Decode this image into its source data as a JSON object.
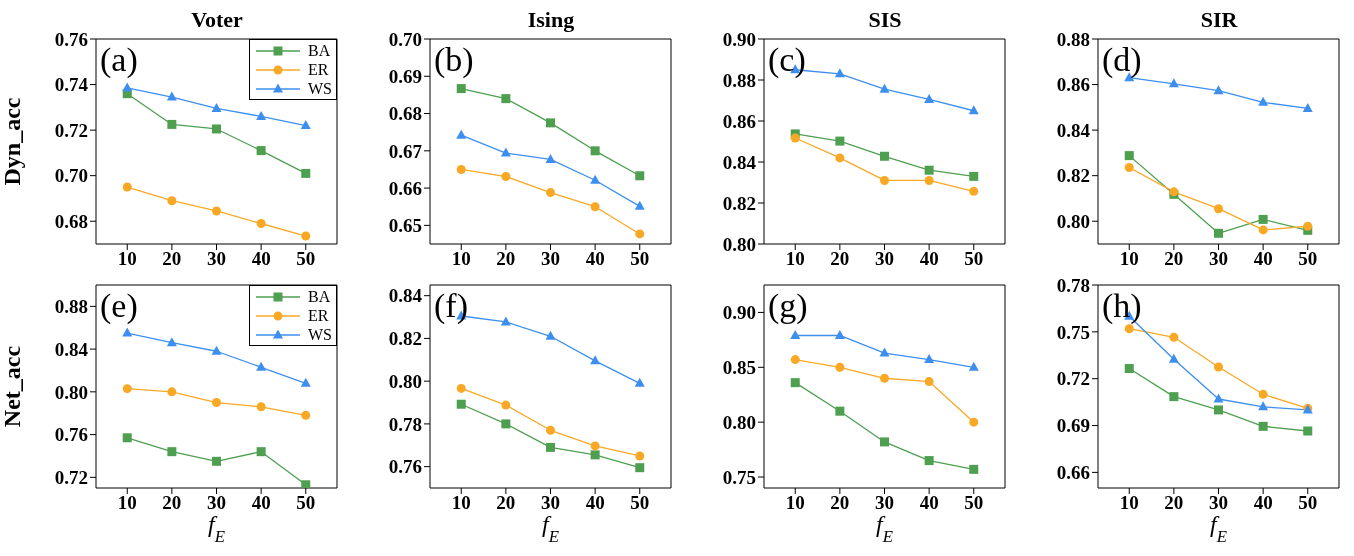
{
  "chart_data": [
    {
      "type": "line",
      "title": "Voter",
      "ylabel": "Dyn_acc",
      "annotations": [
        "(a)"
      ],
      "x": [
        10,
        20,
        30,
        40,
        50
      ],
      "xlim": [
        3,
        57
      ],
      "xticks": [
        10,
        20,
        30,
        40,
        50
      ],
      "ylim": [
        0.67,
        0.76
      ],
      "yticks": [
        0.68,
        {
          "value": 0.7,
          "label": "0.70"
        },
        0.72,
        0.74,
        0.76
      ],
      "legend": "top right",
      "line_style": "solid",
      "tick_labels": "xy",
      "series": [
        {
          "name": "BA",
          "color": "#4e9f50",
          "marker": "square",
          "values": [
            0.736,
            0.7225,
            0.7205,
            0.711,
            0.701
          ]
        },
        {
          "name": "ER",
          "color": "#f9a825",
          "marker": "circle",
          "values": [
            0.695,
            0.689,
            0.6845,
            0.679,
            0.6735
          ]
        },
        {
          "name": "WS",
          "color": "#3d8fef",
          "marker": "triangle",
          "values": [
            0.7385,
            0.7345,
            0.7295,
            0.726,
            0.722
          ]
        }
      ]
    },
    {
      "type": "line",
      "title": "Ising",
      "annotations": [
        "(b)"
      ],
      "x": [
        10,
        20,
        30,
        40,
        50
      ],
      "xlim": [
        3,
        57
      ],
      "xticks": [
        10,
        20,
        30,
        40,
        50
      ],
      "ylim": [
        0.645,
        0.7
      ],
      "yticks": [
        0.65,
        0.66,
        0.67,
        0.68,
        0.69,
        {
          "value": 0.7,
          "label": "0.70"
        }
      ],
      "line_style": "solid",
      "series": [
        {
          "color": "#4e9f50",
          "marker": "square",
          "values": [
            0.6867,
            0.684,
            0.6775,
            0.67,
            0.6633
          ]
        },
        {
          "color": "#f9a825",
          "marker": "circle",
          "values": [
            0.665,
            0.6631,
            0.6588,
            0.655,
            0.6477
          ]
        },
        {
          "color": "#3d8fef",
          "marker": "triangle",
          "values": [
            0.6742,
            0.6694,
            0.6677,
            0.6621,
            0.6551
          ]
        }
      ]
    },
    {
      "type": "line",
      "title": "SIS",
      "annotations": [
        "(c)"
      ],
      "x": [
        10,
        20,
        30,
        40,
        50
      ],
      "xlim": [
        3,
        57
      ],
      "xticks": [
        10,
        20,
        30,
        40,
        50
      ],
      "ylim": [
        0.8,
        0.9
      ],
      "yticks": [
        {
          "value": 0.8,
          "label": "0.80"
        },
        0.82,
        0.84,
        0.86,
        0.88,
        {
          "value": 0.9,
          "label": "0.90"
        }
      ],
      "line_style": "solid",
      "series": [
        {
          "color": "#4e9f50",
          "marker": "square",
          "values": [
            0.8537,
            0.8502,
            0.8428,
            0.836,
            0.833
          ]
        },
        {
          "color": "#f9a825",
          "marker": "circle",
          "values": [
            0.8517,
            0.842,
            0.831,
            0.831,
            0.8257
          ]
        },
        {
          "color": "#3d8fef",
          "marker": "triangle",
          "values": [
            0.885,
            0.883,
            0.8755,
            0.8705,
            0.865
          ]
        }
      ]
    },
    {
      "type": "line",
      "title": "SIR",
      "annotations": [
        "(d)"
      ],
      "x": [
        10,
        20,
        30,
        40,
        50
      ],
      "xlim": [
        3,
        57
      ],
      "xticks": [
        10,
        20,
        30,
        40,
        50
      ],
      "ylim": [
        0.79,
        0.88
      ],
      "yticks": [
        {
          "value": 0.8,
          "label": "0.80"
        },
        0.82,
        0.84,
        0.86,
        0.88
      ],
      "line_style": "solid",
      "series": [
        {
          "color": "#4e9f50",
          "marker": "square",
          "values": [
            0.8288,
            0.8118,
            0.7947,
            0.8008,
            0.796
          ]
        },
        {
          "color": "#f9a825",
          "marker": "circle",
          "values": [
            0.8236,
            0.8129,
            0.8055,
            0.7962,
            0.7978
          ]
        },
        {
          "color": "#3d8fef",
          "marker": "triangle",
          "values": [
            0.863,
            0.8603,
            0.8573,
            0.8522,
            0.8495
          ]
        }
      ]
    },
    {
      "type": "line",
      "ylabel": "Net_acc",
      "xlabel": "f$_{E}$",
      "annotations": [
        "(e)"
      ],
      "x": [
        10,
        20,
        30,
        40,
        50
      ],
      "xlim": [
        3,
        57
      ],
      "xticks": [
        10,
        20,
        30,
        40,
        50
      ],
      "ylim": [
        0.71,
        0.9
      ],
      "yticks": [
        0.72,
        0.76,
        {
          "value": 0.8,
          "label": "0.80"
        },
        0.84,
        0.88
      ],
      "legend": "top right",
      "line_style": "solid",
      "series": [
        {
          "name": "BA",
          "color": "#4e9f50",
          "marker": "square",
          "values": [
            0.757,
            0.744,
            0.735,
            0.744,
            0.713
          ]
        },
        {
          "name": "ER",
          "color": "#f9a825",
          "marker": "circle",
          "values": [
            0.803,
            0.8,
            0.79,
            0.786,
            0.778
          ]
        },
        {
          "name": "WS",
          "color": "#3d8fef",
          "marker": "triangle",
          "values": [
            0.855,
            0.846,
            0.838,
            0.823,
            0.808
          ]
        }
      ]
    },
    {
      "type": "line",
      "xlabel": "f$_{E}$",
      "annotations": [
        "(f)"
      ],
      "x": [
        10,
        20,
        30,
        40,
        50
      ],
      "xlim": [
        3,
        57
      ],
      "xticks": [
        10,
        20,
        30,
        40,
        50
      ],
      "ylim": [
        0.75,
        0.845
      ],
      "yticks": [
        0.76,
        0.78,
        {
          "value": 0.8,
          "label": "0.80"
        },
        0.82,
        0.84
      ],
      "line_style": "solid",
      "series": [
        {
          "color": "#4e9f50",
          "marker": "square",
          "values": [
            0.7892,
            0.78,
            0.769,
            0.7655,
            0.7595
          ]
        },
        {
          "color": "#f9a825",
          "marker": "circle",
          "values": [
            0.7966,
            0.7888,
            0.777,
            0.7697,
            0.765
          ]
        },
        {
          "color": "#3d8fef",
          "marker": "triangle",
          "values": [
            0.8305,
            0.8277,
            0.821,
            0.8095,
            0.799
          ]
        }
      ]
    },
    {
      "type": "line",
      "xlabel": "f$_{E}$",
      "annotations": [
        "(g)"
      ],
      "x": [
        10,
        20,
        30,
        40,
        50
      ],
      "xlim": [
        3,
        57
      ],
      "xticks": [
        10,
        20,
        30,
        40,
        50
      ],
      "ylim": [
        0.74,
        0.925
      ],
      "yticks": [
        0.75,
        {
          "value": 0.8,
          "label": "0.80"
        },
        0.85,
        {
          "value": 0.9,
          "label": "0.90"
        }
      ],
      "line_style": "solid",
      "series": [
        {
          "color": "#4e9f50",
          "marker": "square",
          "values": [
            0.836,
            0.81,
            0.782,
            0.765,
            0.757
          ]
        },
        {
          "color": "#f9a825",
          "marker": "circle",
          "values": [
            0.857,
            0.85,
            0.84,
            0.837,
            0.8
          ]
        },
        {
          "color": "#3d8fef",
          "marker": "triangle",
          "values": [
            0.879,
            0.879,
            0.863,
            0.857,
            0.85
          ]
        }
      ]
    },
    {
      "type": "line",
      "xlabel": "f$_{E}$",
      "annotations": [
        "(h)"
      ],
      "x": [
        10,
        20,
        30,
        40,
        50
      ],
      "xlim": [
        3,
        57
      ],
      "xticks": [
        10,
        20,
        30,
        40,
        50
      ],
      "ylim": [
        0.65,
        0.78
      ],
      "yticks": [
        0.66,
        0.69,
        0.72,
        0.75,
        0.78
      ],
      "line_style": "solid",
      "series": [
        {
          "color": "#4e9f50",
          "marker": "square",
          "values": [
            0.7265,
            0.7085,
            0.7,
            0.6895,
            0.6865
          ]
        },
        {
          "color": "#f9a825",
          "marker": "circle",
          "values": [
            0.752,
            0.7465,
            0.7275,
            0.71,
            0.701
          ]
        },
        {
          "color": "#3d8fef",
          "marker": "triangle",
          "values": [
            0.76,
            0.7325,
            0.707,
            0.702,
            0.7
          ]
        }
      ]
    }
  ]
}
